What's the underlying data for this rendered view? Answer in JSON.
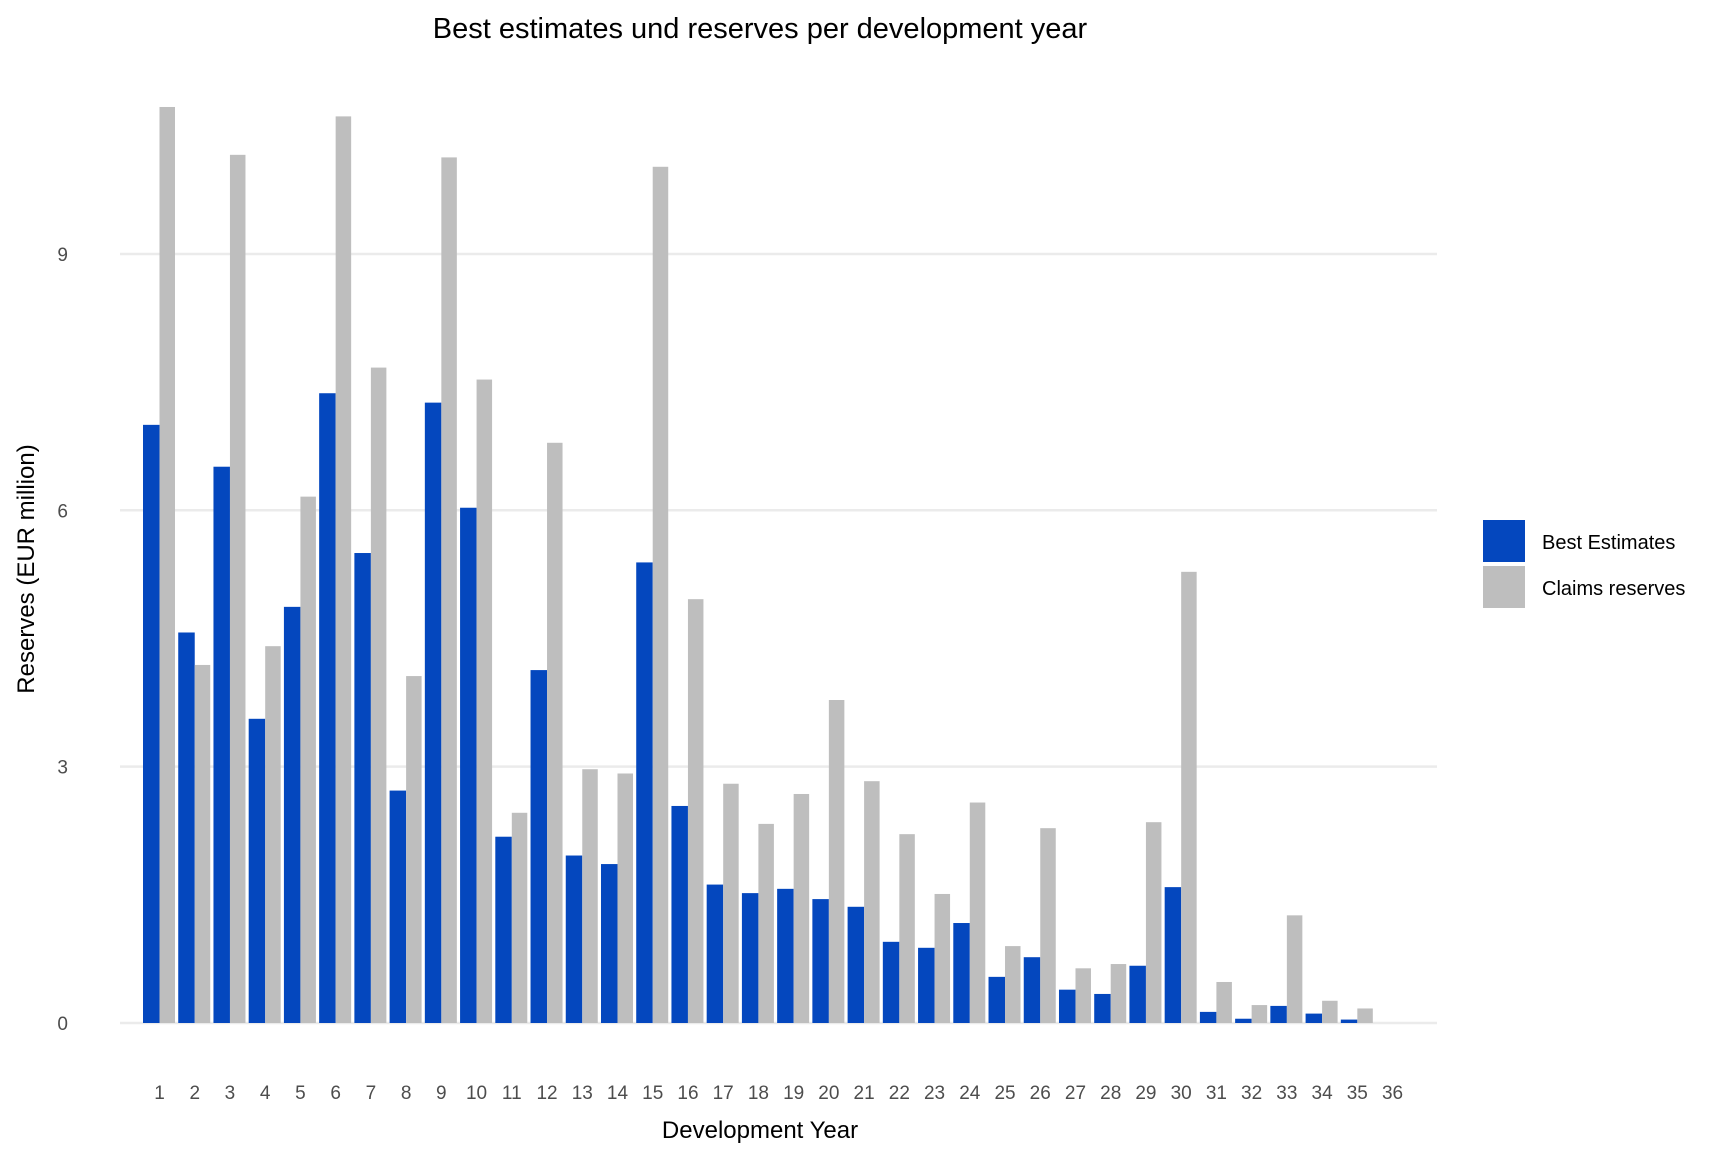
{
  "chart_data": {
    "type": "bar",
    "title": "Best estimates und reserves per development year",
    "xlabel": "Development Year",
    "ylabel": "Reserves (EUR million)",
    "ylim": [
      0,
      10.9
    ],
    "yticks": [
      0,
      3,
      6,
      9
    ],
    "grid": true,
    "legend_position": "right",
    "categories": [
      "1",
      "2",
      "3",
      "4",
      "5",
      "6",
      "7",
      "8",
      "9",
      "10",
      "11",
      "12",
      "13",
      "14",
      "15",
      "16",
      "17",
      "18",
      "19",
      "20",
      "21",
      "22",
      "23",
      "24",
      "25",
      "26",
      "27",
      "28",
      "29",
      "30",
      "31",
      "32",
      "33",
      "34",
      "35",
      "36"
    ],
    "series": [
      {
        "name": "Best Estimates",
        "color": "#0447BE",
        "values": [
          7.0,
          4.57,
          6.51,
          3.56,
          4.87,
          7.37,
          5.5,
          2.72,
          7.26,
          6.03,
          2.18,
          4.13,
          1.96,
          1.86,
          5.39,
          2.54,
          1.62,
          1.52,
          1.57,
          1.45,
          1.36,
          0.95,
          0.88,
          1.17,
          0.54,
          0.77,
          0.39,
          0.34,
          0.67,
          1.59,
          0.13,
          0.05,
          0.2,
          0.11,
          0.04,
          0
        ]
      },
      {
        "name": "Claims reserves",
        "color": "#BEBEBE",
        "values": [
          10.72,
          4.19,
          10.16,
          4.41,
          6.16,
          10.61,
          7.67,
          4.06,
          10.13,
          7.53,
          2.46,
          6.79,
          2.97,
          2.92,
          10.02,
          4.96,
          2.8,
          2.33,
          2.68,
          3.78,
          2.83,
          2.21,
          1.51,
          2.58,
          0.9,
          2.28,
          0.64,
          0.69,
          2.35,
          5.28,
          0.48,
          0.21,
          1.26,
          0.26,
          0.17,
          0
        ]
      }
    ]
  }
}
